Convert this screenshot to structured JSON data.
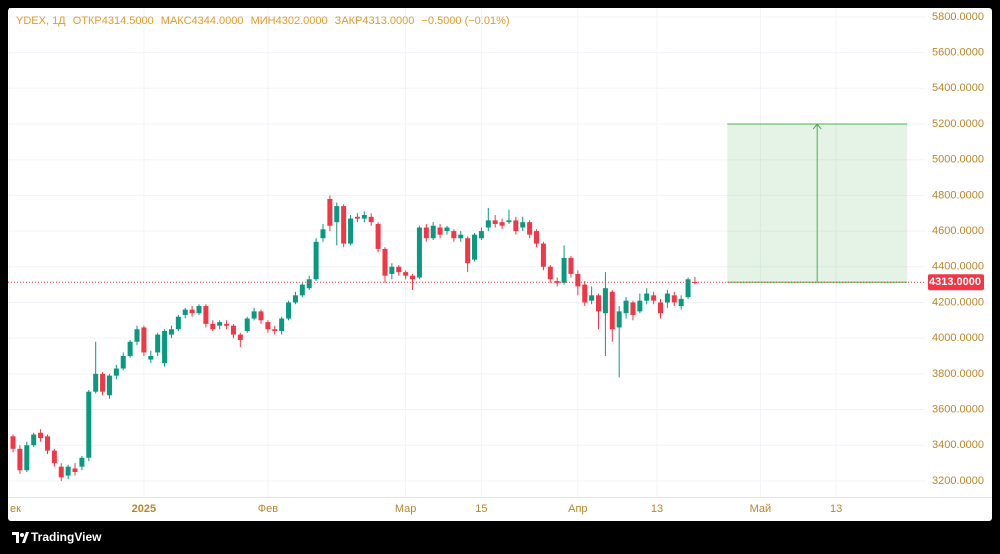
{
  "header": {
    "symbol": "YDEX, 1Д",
    "open_label": "ОТКР",
    "open": "4314.5000",
    "high_label": "МАКС",
    "high": "4344.0000",
    "low_label": "МИН",
    "low": "4302.0000",
    "close_label": "ЗАКР",
    "close": "4313.0000",
    "change": "−0.5000 (−0.01%)"
  },
  "chart_data": {
    "type": "candlestick",
    "up_color": "#089981",
    "down_color": "#f23645",
    "open": [
      3450,
      3380,
      3260,
      3400,
      3470,
      3450,
      3370,
      3280,
      3230,
      3270,
      3280,
      3330,
      3700,
      3800,
      3680,
      3790,
      3830,
      3900,
      3980,
      4060,
      3880,
      3920,
      3860,
      4020,
      4050,
      4130,
      4160,
      4140,
      4180,
      4080,
      4070,
      4080,
      4070,
      4020,
      4040,
      4110,
      4150,
      4090,
      4050,
      4040,
      4110,
      4200,
      4240,
      4280,
      4330,
      4560,
      4780,
      4650,
      4740,
      4530,
      4680,
      4670,
      4680,
      4640,
      4500,
      4360,
      4400,
      4370,
      4350,
      4340,
      4620,
      4560,
      4620,
      4600,
      4600,
      4560,
      4560,
      4440,
      4560,
      4620,
      4660,
      4650,
      4650,
      4660,
      4620,
      4650,
      4600,
      4530,
      4400,
      4320,
      4310,
      4450,
      4360,
      4300,
      4210,
      4240,
      4140,
      4260,
      4060,
      4140,
      4200,
      4150,
      4210,
      4240,
      4200,
      4200,
      4240,
      4180,
      4230,
      4314.5
    ],
    "high": [
      3460,
      3400,
      3420,
      3470,
      3490,
      3460,
      3380,
      3300,
      3290,
      3300,
      3340,
      3710,
      3980,
      3810,
      3800,
      3850,
      3920,
      3990,
      4070,
      4070,
      3930,
      4030,
      4050,
      4070,
      4130,
      4170,
      4180,
      4190,
      4190,
      4100,
      4100,
      4100,
      4080,
      4030,
      4120,
      4170,
      4160,
      4100,
      4070,
      4120,
      4210,
      4260,
      4310,
      4350,
      4560,
      4640,
      4800,
      4760,
      4750,
      4690,
      4700,
      4710,
      4700,
      4650,
      4510,
      4420,
      4410,
      4380,
      4360,
      4630,
      4640,
      4650,
      4640,
      4630,
      4610,
      4600,
      4570,
      4590,
      4620,
      4730,
      4690,
      4670,
      4720,
      4680,
      4680,
      4660,
      4610,
      4540,
      4410,
      4340,
      4520,
      4460,
      4380,
      4320,
      4290,
      4250,
      4370,
      4270,
      4180,
      4230,
      4210,
      4250,
      4280,
      4260,
      4220,
      4270,
      4260,
      4240,
      4340,
      4344
    ],
    "low": [
      3360,
      3240,
      3250,
      3390,
      3420,
      3350,
      3280,
      3200,
      3210,
      3230,
      3260,
      3310,
      3690,
      3680,
      3660,
      3770,
      3820,
      3890,
      3960,
      3900,
      3860,
      3900,
      3840,
      4000,
      4040,
      4110,
      4120,
      4130,
      4060,
      4040,
      4050,
      4050,
      4000,
      3950,
      4030,
      4100,
      4080,
      4030,
      4020,
      4020,
      4100,
      4190,
      4230,
      4270,
      4320,
      4540,
      4600,
      4520,
      4510,
      4520,
      4650,
      4650,
      4630,
      4480,
      4310,
      4330,
      4350,
      4330,
      4270,
      4330,
      4540,
      4550,
      4560,
      4580,
      4540,
      4540,
      4370,
      4430,
      4550,
      4600,
      4620,
      4610,
      4640,
      4580,
      4600,
      4560,
      4510,
      4380,
      4310,
      4290,
      4300,
      4340,
      4240,
      4180,
      4190,
      4050,
      3900,
      3980,
      3780,
      4110,
      4100,
      4140,
      4190,
      4190,
      4110,
      4170,
      4180,
      4160,
      4220,
      4302
    ],
    "close": [
      3380,
      3260,
      3400,
      3460,
      3440,
      3370,
      3300,
      3220,
      3280,
      3250,
      3330,
      3700,
      3800,
      3700,
      3790,
      3830,
      3900,
      3980,
      4050,
      3920,
      3900,
      4020,
      4040,
      4050,
      4120,
      4160,
      4140,
      4180,
      4080,
      4050,
      4090,
      4070,
      4020,
      3990,
      4110,
      4150,
      4100,
      4050,
      4040,
      4110,
      4200,
      4240,
      4300,
      4330,
      4540,
      4610,
      4630,
      4740,
      4530,
      4670,
      4670,
      4690,
      4650,
      4500,
      4350,
      4400,
      4370,
      4350,
      4330,
      4620,
      4560,
      4630,
      4580,
      4620,
      4560,
      4580,
      4420,
      4580,
      4600,
      4660,
      4640,
      4630,
      4660,
      4600,
      4650,
      4580,
      4530,
      4400,
      4330,
      4310,
      4450,
      4360,
      4290,
      4200,
      4240,
      4150,
      4280,
      4050,
      4150,
      4210,
      4130,
      4210,
      4250,
      4210,
      4140,
      4250,
      4200,
      4220,
      4330,
      4313
    ],
    "xlim": [
      -0.44,
      132.4
    ],
    "xticks": [
      {
        "value": -0.5,
        "label": "ек"
      },
      {
        "value": 19,
        "label": "2025"
      },
      {
        "value": 37,
        "label": "Фев"
      },
      {
        "value": 57,
        "label": "Мар"
      },
      {
        "value": 68,
        "label": "15"
      },
      {
        "value": 82,
        "label": "Апр"
      },
      {
        "value": 93.5,
        "label": "13"
      },
      {
        "value": 108.5,
        "label": "Май"
      },
      {
        "value": 119.5,
        "label": "13"
      }
    ],
    "ylim": [
      3110,
      5850
    ],
    "yticks": [
      {
        "value": 3200,
        "label": "3200.0000"
      },
      {
        "value": 3400,
        "label": "3400.0000"
      },
      {
        "value": 3600,
        "label": "3600.0000"
      },
      {
        "value": 3800,
        "label": "3800.0000"
      },
      {
        "value": 4000,
        "label": "4000.0000"
      },
      {
        "value": 4200,
        "label": "4200.0000"
      },
      {
        "value": 4400,
        "label": "4400.0000"
      },
      {
        "value": 4600,
        "label": "4600.0000"
      },
      {
        "value": 4800,
        "label": "4800.0000"
      },
      {
        "value": 5000,
        "label": "5000.0000"
      },
      {
        "value": 5200,
        "label": "5200.0000"
      },
      {
        "value": 5400,
        "label": "5400.0000"
      },
      {
        "value": 5600,
        "label": "5600.0000"
      },
      {
        "value": 5800,
        "label": "5800.0000"
      }
    ],
    "grid": true,
    "last_price": {
      "value": 4313,
      "label": "4313.0000"
    },
    "projection": {
      "x_start": 103.7,
      "x_end": 129.8,
      "y_start": 4313,
      "y_end": 5200,
      "color": "#4caf50"
    }
  },
  "footer": {
    "brand": "TradingView"
  }
}
